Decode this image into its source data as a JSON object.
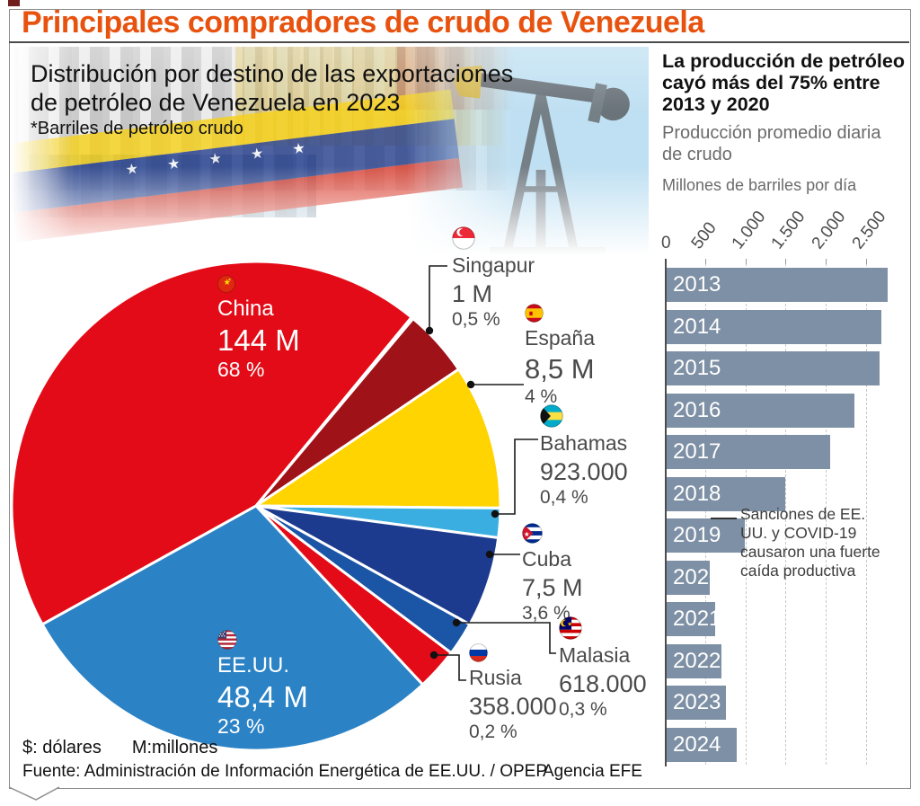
{
  "title": "Principales compradores de crudo de Venezuela",
  "hero": {
    "line1": "Distribución por destino de las exportaciones",
    "line2": "de petróleo de Venezuela en 2023",
    "note": "*Barriles de petróleo crudo"
  },
  "right_panel": {
    "title": "La producción de petróleo cayó más del 75% entre 2013 y 2020",
    "subtitle": "Producción promedio diaria de crudo",
    "unit": "Millones de barriles por día"
  },
  "footer": {
    "legend_dollar": "$: dólares",
    "legend_m": "M:millones",
    "source": "Fuente: Administración de Información Energética de EE.UU. / OPEP",
    "credit": "Agencia EFE"
  },
  "colors": {
    "accent_orange": "#e8520f",
    "bar_fill": "#7e90a5",
    "pie_red": "#e30b17",
    "pie_dark_red": "#9e1218",
    "pie_yellow": "#ffd400",
    "pie_light_blue": "#3aaee0",
    "pie_navy": "#1d3b8e",
    "pie_medium_blue": "#1a55a6",
    "pie_blue": "#2b82c5"
  },
  "chart_data": [
    {
      "type": "pie",
      "title": "Distribución por destino de las exportaciones de petróleo de Venezuela en 2023",
      "note": "*Barriles de petróleo crudo",
      "slices": [
        {
          "label": "China",
          "value_label": "144 M",
          "pct_label": "68 %",
          "pct": 68,
          "color": "#e30b17",
          "flag": "china-flag-icon"
        },
        {
          "label": "Singapur",
          "value_label": "1 M",
          "pct_label": "0,5 %",
          "pct": 0.5,
          "color": "#9e1218",
          "flag": "singapore-flag-icon"
        },
        {
          "label": "España",
          "value_label": "8,5 M",
          "pct_label": "4 %",
          "pct": 4,
          "color": "#ffd400",
          "flag": "spain-flag-icon"
        },
        {
          "label": "Bahamas",
          "value_label": "923.000",
          "pct_label": "0,4 %",
          "pct": 0.4,
          "color": "#3aaee0",
          "flag": "bahamas-flag-icon"
        },
        {
          "label": "Cuba",
          "value_label": "7,5 M",
          "pct_label": "3,6 %",
          "pct": 3.6,
          "color": "#1d3b8e",
          "flag": "cuba-flag-icon"
        },
        {
          "label": "Malasia",
          "value_label": "618.000",
          "pct_label": "0,3 %",
          "pct": 0.3,
          "color": "#1a55a6",
          "flag": "malaysia-flag-icon"
        },
        {
          "label": "Rusia",
          "value_label": "358.000",
          "pct_label": "0,2 %",
          "pct": 0.2,
          "color": "#e30b17",
          "flag": "russia-flag-icon"
        },
        {
          "label": "EE.UU.",
          "value_label": "48,4 M",
          "pct_label": "23 %",
          "pct": 23,
          "color": "#2b82c5",
          "flag": "usa-flag-icon"
        }
      ]
    },
    {
      "type": "bar",
      "orientation": "horizontal",
      "title": "La producción de petróleo cayó más del 75% entre 2013 y 2020",
      "subtitle": "Producción promedio diaria de crudo",
      "xlabel": "Millones de barriles por día",
      "categories": [
        "2013",
        "2014",
        "2015",
        "2016",
        "2017",
        "2018",
        "2019",
        "2020",
        "2021",
        "2022",
        "2023",
        "2024"
      ],
      "values": [
        2750,
        2670,
        2650,
        2330,
        2030,
        1470,
        970,
        540,
        600,
        680,
        740,
        870
      ],
      "xlim": [
        0,
        2500
      ],
      "xticks": [
        "0",
        "500",
        "1.000",
        "1.500",
        "2.000",
        "2.500"
      ],
      "grid": "dashed-vertical",
      "bar_color": "#7e90a5",
      "annotation": {
        "text": "Sanciones de EE. UU. y COVID-19 causaron una fuerte caída productiva",
        "target": "2020"
      }
    }
  ]
}
